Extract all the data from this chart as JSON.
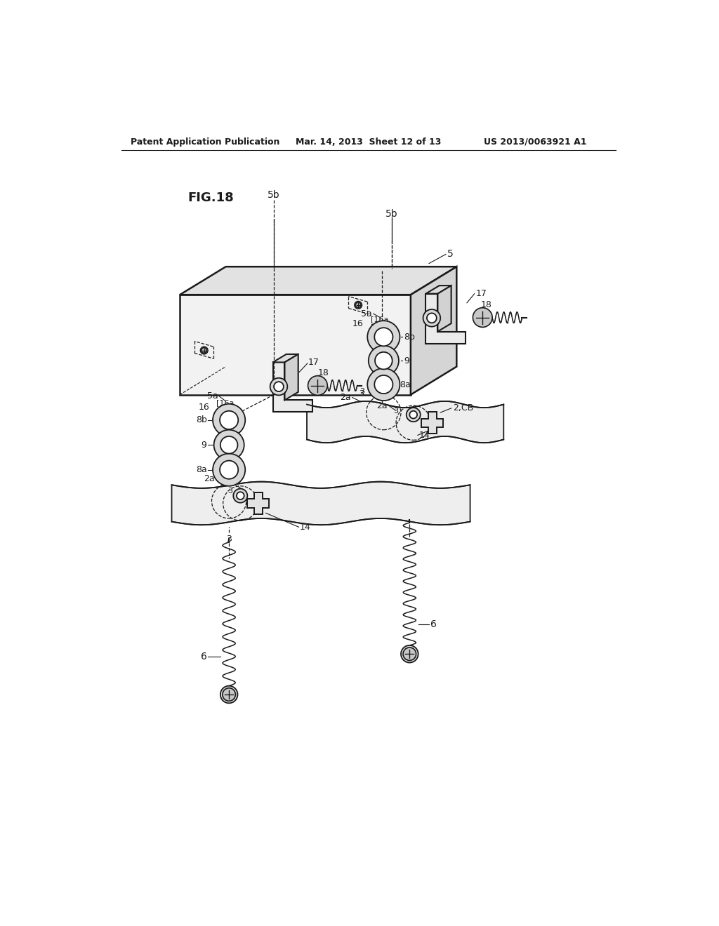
{
  "header_left": "Patent Application Publication",
  "header_mid": "Mar. 14, 2013  Sheet 12 of 13",
  "header_right": "US 2013/0063921 A1",
  "fig_label": "FIG.18",
  "bg": "#ffffff",
  "lc": "#1a1a1a"
}
